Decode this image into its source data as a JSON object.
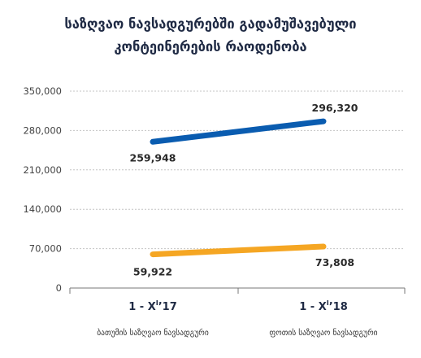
{
  "chart_data": {
    "type": "line",
    "title": "საზღვაო ნავსადგურებში გადამუშავებული კონტეინერების რაოდენობა",
    "title_lines": [
      "საზღვაო ნავსადგურებში გადამუშავებული",
      "კონტეინერების რაოდენობა"
    ],
    "categories": [
      "1 - X",
      "1 - X"
    ],
    "category_sup": [
      "I",
      "I"
    ],
    "category_years": [
      "’17",
      "’18"
    ],
    "series": [
      {
        "name": "ბათუმის საზღვაო ნავსადგური",
        "values": [
          59922,
          73808
        ],
        "labels": [
          "59,922",
          "73,808"
        ],
        "color": "#f5a623"
      },
      {
        "name": "ფოთის საზღვაო ნავსადგური",
        "values": [
          259948,
          296320
        ],
        "labels": [
          "259,948",
          "296,320"
        ],
        "color": "#0a5cb0"
      }
    ],
    "yticks": [
      0,
      70000,
      140000,
      210000,
      280000,
      350000
    ],
    "ytick_labels": [
      "0",
      "70,000",
      "140,000",
      "210,000",
      "280,000",
      "350,000"
    ],
    "ylim": [
      0,
      350000
    ],
    "grid": true,
    "legend": "bottom",
    "xlabel": "",
    "ylabel": ""
  }
}
